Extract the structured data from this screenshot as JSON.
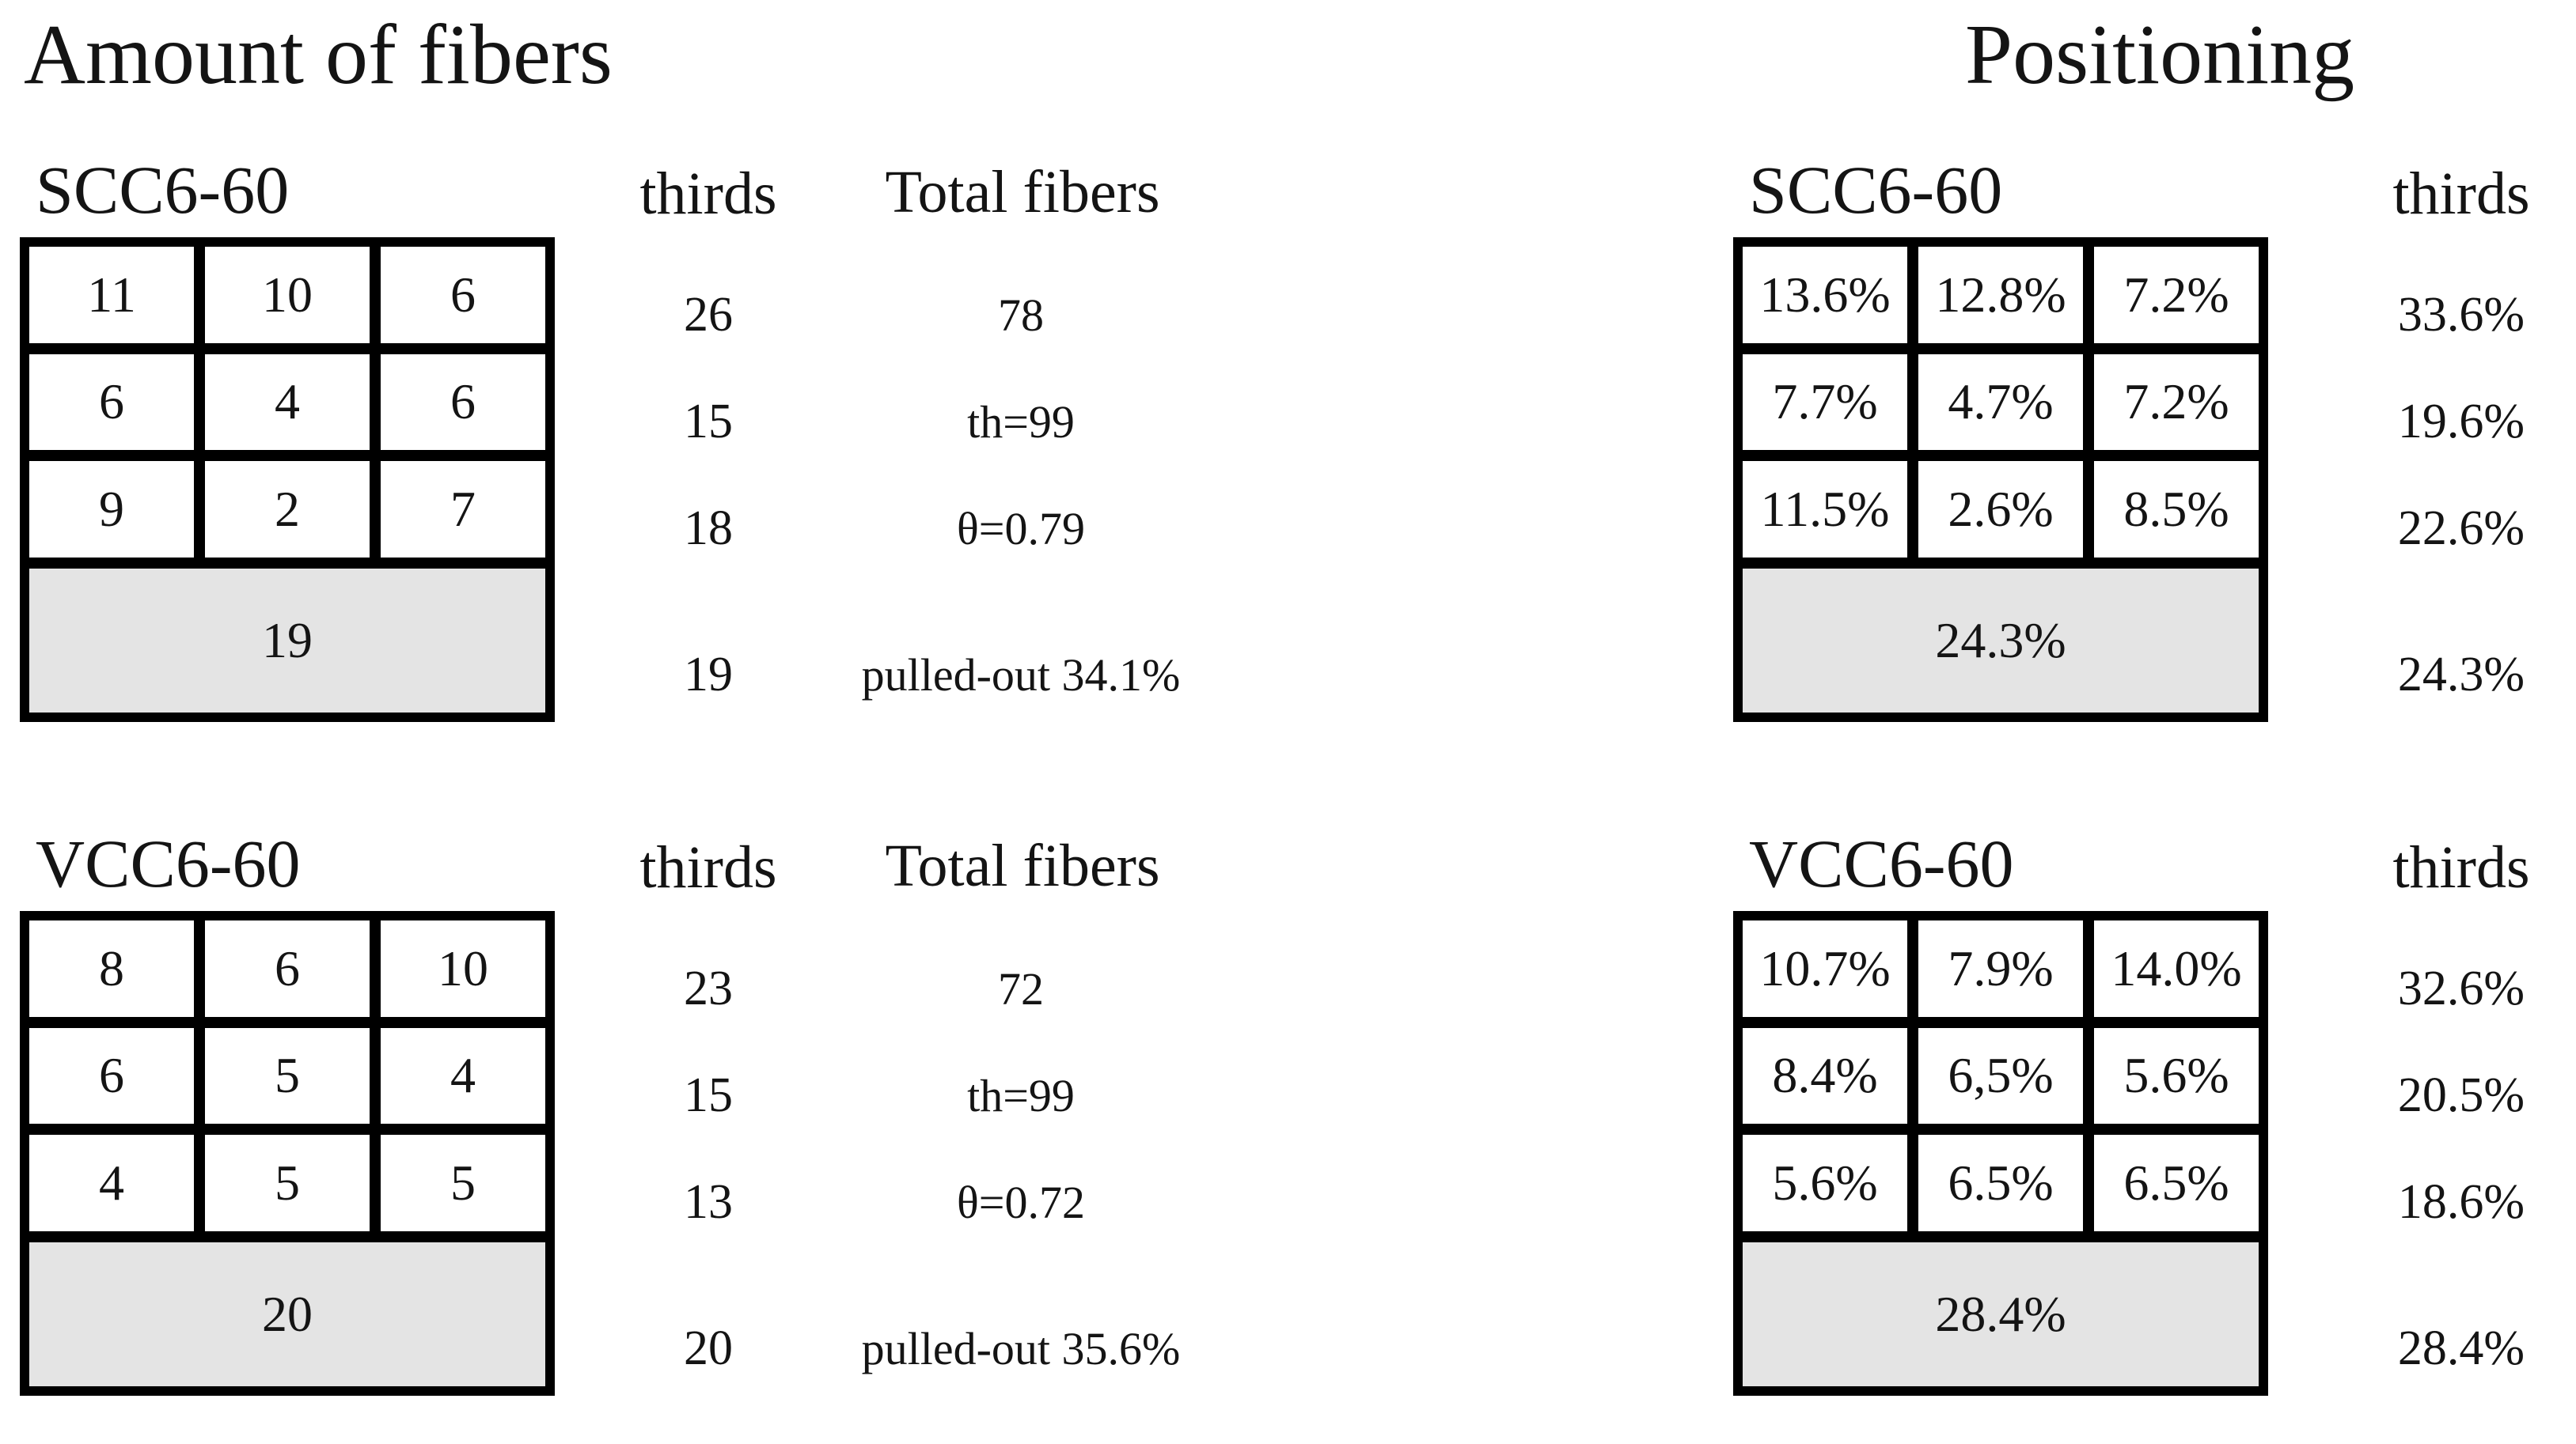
{
  "figure": {
    "left_title": "Amount of fibers",
    "right_title": "Positioning"
  },
  "colors": {
    "background": "#ffffff",
    "grid_border": "#000000",
    "shaded_row": "#e4e4e4",
    "text": "#141414"
  },
  "panels": [
    {
      "label": "SCC6-60",
      "thirds_header": "thirds",
      "stats_header": "Total fibers",
      "cells": [
        [
          "11",
          "10",
          "6"
        ],
        [
          "6",
          "4",
          "6"
        ],
        [
          "9",
          "2",
          "7"
        ]
      ],
      "footer": "19",
      "thirds": [
        "26",
        "15",
        "18",
        "19"
      ],
      "stats": [
        "78",
        "th=99",
        "θ=0.79",
        "pulled-out 34.1%"
      ]
    },
    {
      "label": "SCC6-60",
      "thirds_header": "thirds",
      "cells": [
        [
          "13.6%",
          "12.8%",
          "7.2%"
        ],
        [
          "7.7%",
          "4.7%",
          "7.2%"
        ],
        [
          "11.5%",
          "2.6%",
          "8.5%"
        ]
      ],
      "footer": "24.3%",
      "thirds": [
        "33.6%",
        "19.6%",
        "22.6%",
        "24.3%"
      ]
    },
    {
      "label": "VCC6-60",
      "thirds_header": "thirds",
      "stats_header": "Total fibers",
      "cells": [
        [
          "8",
          "6",
          "10"
        ],
        [
          "6",
          "5",
          "4"
        ],
        [
          "4",
          "5",
          "5"
        ]
      ],
      "footer": "20",
      "thirds": [
        "23",
        "15",
        "13",
        "20"
      ],
      "stats": [
        "72",
        "th=99",
        "θ=0.72",
        "pulled-out 35.6%"
      ]
    },
    {
      "label": "VCC6-60",
      "thirds_header": "thirds",
      "cells": [
        [
          "10.7%",
          "7.9%",
          "14.0%"
        ],
        [
          "8.4%",
          "6,5%",
          "5.6%"
        ],
        [
          "5.6%",
          "6.5%",
          "6.5%"
        ]
      ],
      "footer": "28.4%",
      "thirds": [
        "32.6%",
        "20.5%",
        "18.6%",
        "28.4%"
      ]
    }
  ],
  "chart_data": [
    {
      "type": "table",
      "title": "Amount of fibers — SCC6-60",
      "grid_values": [
        [
          11,
          10,
          6
        ],
        [
          6,
          4,
          6
        ],
        [
          9,
          2,
          7
        ]
      ],
      "bottom_row_value": 19,
      "thirds": [
        26,
        15,
        18,
        19
      ],
      "total_fibers": 78,
      "th": 99,
      "theta": 0.79,
      "pulled_out_pct": 34.1
    },
    {
      "type": "table",
      "title": "Positioning — SCC6-60",
      "grid_values_pct": [
        [
          13.6,
          12.8,
          7.2
        ],
        [
          7.7,
          4.7,
          7.2
        ],
        [
          11.5,
          2.6,
          8.5
        ]
      ],
      "bottom_row_pct": 24.3,
      "thirds_pct": [
        33.6,
        19.6,
        22.6,
        24.3
      ]
    },
    {
      "type": "table",
      "title": "Amount of fibers — VCC6-60",
      "grid_values": [
        [
          8,
          6,
          10
        ],
        [
          6,
          5,
          4
        ],
        [
          4,
          5,
          5
        ]
      ],
      "bottom_row_value": 20,
      "thirds": [
        23,
        15,
        13,
        20
      ],
      "total_fibers": 72,
      "th": 99,
      "theta": 0.72,
      "pulled_out_pct": 35.6
    },
    {
      "type": "table",
      "title": "Positioning — VCC6-60",
      "grid_values_pct": [
        [
          10.7,
          7.9,
          14.0
        ],
        [
          8.4,
          6.5,
          5.6
        ],
        [
          5.6,
          6.5,
          6.5
        ]
      ],
      "bottom_row_pct": 28.4,
      "thirds_pct": [
        32.6,
        20.5,
        18.6,
        28.4
      ]
    }
  ]
}
